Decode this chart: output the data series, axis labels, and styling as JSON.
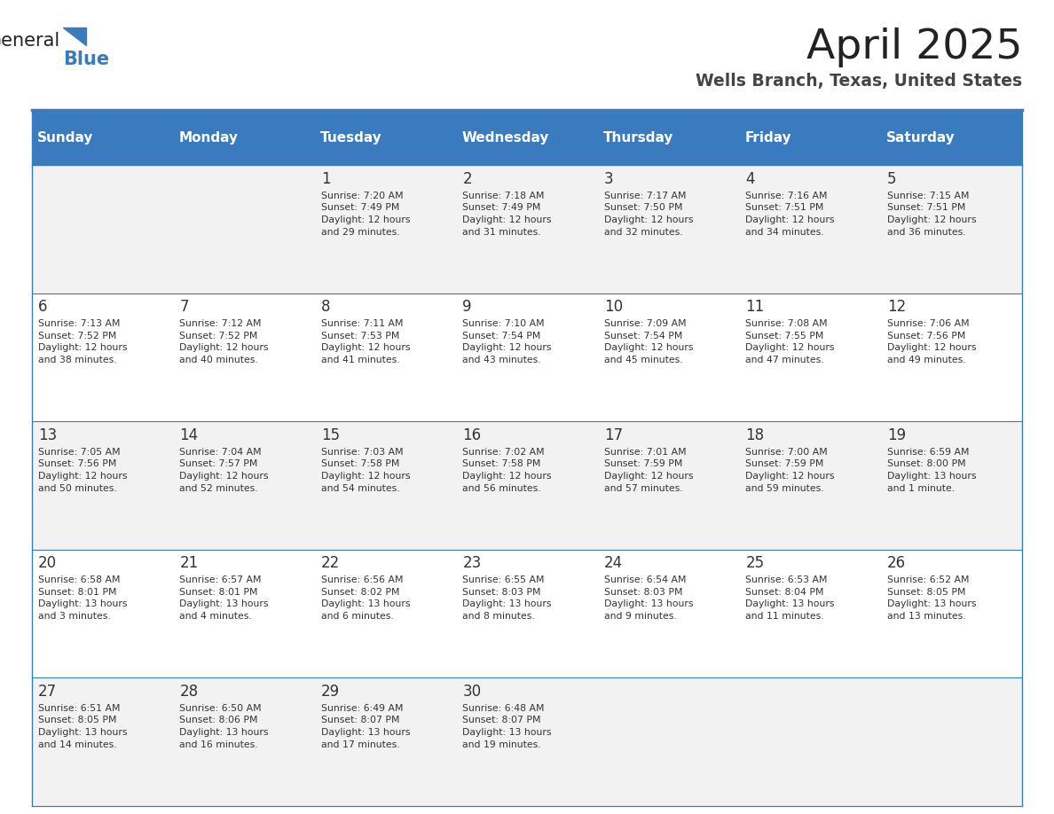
{
  "title": "April 2025",
  "subtitle": "Wells Branch, Texas, United States",
  "days_of_week": [
    "Sunday",
    "Monday",
    "Tuesday",
    "Wednesday",
    "Thursday",
    "Friday",
    "Saturday"
  ],
  "header_bg": "#3a7bbf",
  "header_text": "#ffffff",
  "cell_bg_light": "#f2f2f2",
  "cell_bg_white": "#ffffff",
  "grid_line_color": "#3a7bbf",
  "text_color": "#333333",
  "title_color": "#222222",
  "subtitle_color": "#444444",
  "logo_general_color": "#222222",
  "logo_blue_color": "#3a7bbf",
  "weeks": [
    [
      {
        "day": null,
        "text": ""
      },
      {
        "day": null,
        "text": ""
      },
      {
        "day": 1,
        "text": "Sunrise: 7:20 AM\nSunset: 7:49 PM\nDaylight: 12 hours\nand 29 minutes."
      },
      {
        "day": 2,
        "text": "Sunrise: 7:18 AM\nSunset: 7:49 PM\nDaylight: 12 hours\nand 31 minutes."
      },
      {
        "day": 3,
        "text": "Sunrise: 7:17 AM\nSunset: 7:50 PM\nDaylight: 12 hours\nand 32 minutes."
      },
      {
        "day": 4,
        "text": "Sunrise: 7:16 AM\nSunset: 7:51 PM\nDaylight: 12 hours\nand 34 minutes."
      },
      {
        "day": 5,
        "text": "Sunrise: 7:15 AM\nSunset: 7:51 PM\nDaylight: 12 hours\nand 36 minutes."
      }
    ],
    [
      {
        "day": 6,
        "text": "Sunrise: 7:13 AM\nSunset: 7:52 PM\nDaylight: 12 hours\nand 38 minutes."
      },
      {
        "day": 7,
        "text": "Sunrise: 7:12 AM\nSunset: 7:52 PM\nDaylight: 12 hours\nand 40 minutes."
      },
      {
        "day": 8,
        "text": "Sunrise: 7:11 AM\nSunset: 7:53 PM\nDaylight: 12 hours\nand 41 minutes."
      },
      {
        "day": 9,
        "text": "Sunrise: 7:10 AM\nSunset: 7:54 PM\nDaylight: 12 hours\nand 43 minutes."
      },
      {
        "day": 10,
        "text": "Sunrise: 7:09 AM\nSunset: 7:54 PM\nDaylight: 12 hours\nand 45 minutes."
      },
      {
        "day": 11,
        "text": "Sunrise: 7:08 AM\nSunset: 7:55 PM\nDaylight: 12 hours\nand 47 minutes."
      },
      {
        "day": 12,
        "text": "Sunrise: 7:06 AM\nSunset: 7:56 PM\nDaylight: 12 hours\nand 49 minutes."
      }
    ],
    [
      {
        "day": 13,
        "text": "Sunrise: 7:05 AM\nSunset: 7:56 PM\nDaylight: 12 hours\nand 50 minutes."
      },
      {
        "day": 14,
        "text": "Sunrise: 7:04 AM\nSunset: 7:57 PM\nDaylight: 12 hours\nand 52 minutes."
      },
      {
        "day": 15,
        "text": "Sunrise: 7:03 AM\nSunset: 7:58 PM\nDaylight: 12 hours\nand 54 minutes."
      },
      {
        "day": 16,
        "text": "Sunrise: 7:02 AM\nSunset: 7:58 PM\nDaylight: 12 hours\nand 56 minutes."
      },
      {
        "day": 17,
        "text": "Sunrise: 7:01 AM\nSunset: 7:59 PM\nDaylight: 12 hours\nand 57 minutes."
      },
      {
        "day": 18,
        "text": "Sunrise: 7:00 AM\nSunset: 7:59 PM\nDaylight: 12 hours\nand 59 minutes."
      },
      {
        "day": 19,
        "text": "Sunrise: 6:59 AM\nSunset: 8:00 PM\nDaylight: 13 hours\nand 1 minute."
      }
    ],
    [
      {
        "day": 20,
        "text": "Sunrise: 6:58 AM\nSunset: 8:01 PM\nDaylight: 13 hours\nand 3 minutes."
      },
      {
        "day": 21,
        "text": "Sunrise: 6:57 AM\nSunset: 8:01 PM\nDaylight: 13 hours\nand 4 minutes."
      },
      {
        "day": 22,
        "text": "Sunrise: 6:56 AM\nSunset: 8:02 PM\nDaylight: 13 hours\nand 6 minutes."
      },
      {
        "day": 23,
        "text": "Sunrise: 6:55 AM\nSunset: 8:03 PM\nDaylight: 13 hours\nand 8 minutes."
      },
      {
        "day": 24,
        "text": "Sunrise: 6:54 AM\nSunset: 8:03 PM\nDaylight: 13 hours\nand 9 minutes."
      },
      {
        "day": 25,
        "text": "Sunrise: 6:53 AM\nSunset: 8:04 PM\nDaylight: 13 hours\nand 11 minutes."
      },
      {
        "day": 26,
        "text": "Sunrise: 6:52 AM\nSunset: 8:05 PM\nDaylight: 13 hours\nand 13 minutes."
      }
    ],
    [
      {
        "day": 27,
        "text": "Sunrise: 6:51 AM\nSunset: 8:05 PM\nDaylight: 13 hours\nand 14 minutes."
      },
      {
        "day": 28,
        "text": "Sunrise: 6:50 AM\nSunset: 8:06 PM\nDaylight: 13 hours\nand 16 minutes."
      },
      {
        "day": 29,
        "text": "Sunrise: 6:49 AM\nSunset: 8:07 PM\nDaylight: 13 hours\nand 17 minutes."
      },
      {
        "day": 30,
        "text": "Sunrise: 6:48 AM\nSunset: 8:07 PM\nDaylight: 13 hours\nand 19 minutes."
      },
      {
        "day": null,
        "text": ""
      },
      {
        "day": null,
        "text": ""
      },
      {
        "day": null,
        "text": ""
      }
    ]
  ]
}
